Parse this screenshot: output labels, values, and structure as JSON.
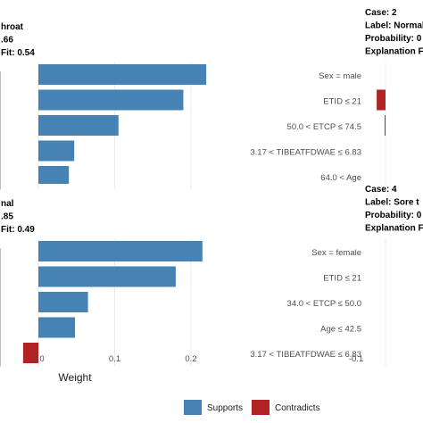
{
  "chart_data": [
    {
      "type": "bar",
      "orientation": "horizontal",
      "header": [
        "hroat",
        ".66",
        "Fit: 0.54"
      ],
      "features": [],
      "values": [
        0.22,
        0.19,
        0.105,
        0.047,
        0.04
      ],
      "xlim": [
        -0.02,
        0.25
      ]
    },
    {
      "type": "bar",
      "orientation": "horizontal",
      "header": [
        "Case: 2",
        "Label: Normal",
        "Probability: 0",
        "Explanation F"
      ],
      "features": [
        "Sex = male",
        "ETID ≤ 21",
        "50.0 < ETCP ≤ 74.5",
        "3.17 < TIBEATFDWAE ≤ 6.83",
        "64.0 < Age"
      ],
      "values": [
        null,
        -0.03,
        -0.003,
        null,
        null
      ]
    },
    {
      "type": "bar",
      "orientation": "horizontal",
      "header": [
        "nal",
        ".85",
        "Fit: 0.49"
      ],
      "features": [],
      "values": [
        0.215,
        0.18,
        0.065,
        0.048,
        -0.02
      ],
      "xticks": [
        "0.0",
        "0.1",
        "0.2"
      ],
      "xticks_values": [
        0.0,
        0.1,
        0.2
      ],
      "xlabel": "Weight",
      "xlim": [
        -0.02,
        0.25
      ]
    },
    {
      "type": "bar",
      "orientation": "horizontal",
      "header": [
        "Case: 4",
        "Label: Sore t",
        "Probability: 0",
        "Explanation F"
      ],
      "features": [
        "Sex = female",
        "ETID ≤ 21",
        "34.0 < ETCP ≤ 50.0",
        "Age ≤ 42.5",
        "3.17 < TIBEATFDWAE ≤ 6.83"
      ],
      "values": [
        null,
        null,
        null,
        null,
        null
      ],
      "xticks": [
        "-0.1"
      ],
      "xticks_values": [
        -0.1
      ]
    }
  ],
  "legend": [
    {
      "label": "Supports",
      "color": "#4682b4"
    },
    {
      "label": "Contradicts",
      "color": "#b22222"
    }
  ],
  "colors": {
    "supports": "#4682b4",
    "contradicts": "#b22222",
    "grid": "#ebebeb"
  }
}
